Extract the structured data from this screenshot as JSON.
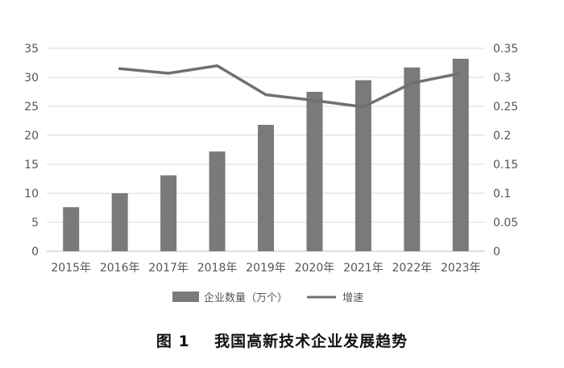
{
  "chart_data": {
    "type": "bar",
    "categories": [
      "2015年",
      "2016年",
      "2017年",
      "2018年",
      "2019年",
      "2020年",
      "2021年",
      "2022年",
      "2023年"
    ],
    "series": [
      {
        "name": "企业数量（万个）",
        "type": "bar",
        "axis": "left",
        "color": "#7a7a7a",
        "values": [
          7.6,
          10.0,
          13.1,
          17.2,
          21.8,
          27.5,
          29.5,
          31.7,
          33.2
        ]
      },
      {
        "name": "增速",
        "type": "line",
        "axis": "right",
        "color": "#707070",
        "values": [
          null,
          0.315,
          0.307,
          0.32,
          0.27,
          0.26,
          0.249,
          0.29,
          0.307
        ]
      }
    ],
    "y_left": {
      "ylim": [
        0,
        35
      ],
      "ticks": [
        "0",
        "5",
        "10",
        "15",
        "20",
        "25",
        "30",
        "35"
      ]
    },
    "y_right": {
      "ylim": [
        0,
        0.35
      ],
      "ticks": [
        "0",
        "0.05",
        "0.1",
        "0.15",
        "0.2",
        "0.25",
        "0.3",
        "0.35"
      ]
    },
    "grid": true,
    "legend_position": "bottom"
  },
  "caption": "图 1    我国高新技术企业发展趋势"
}
